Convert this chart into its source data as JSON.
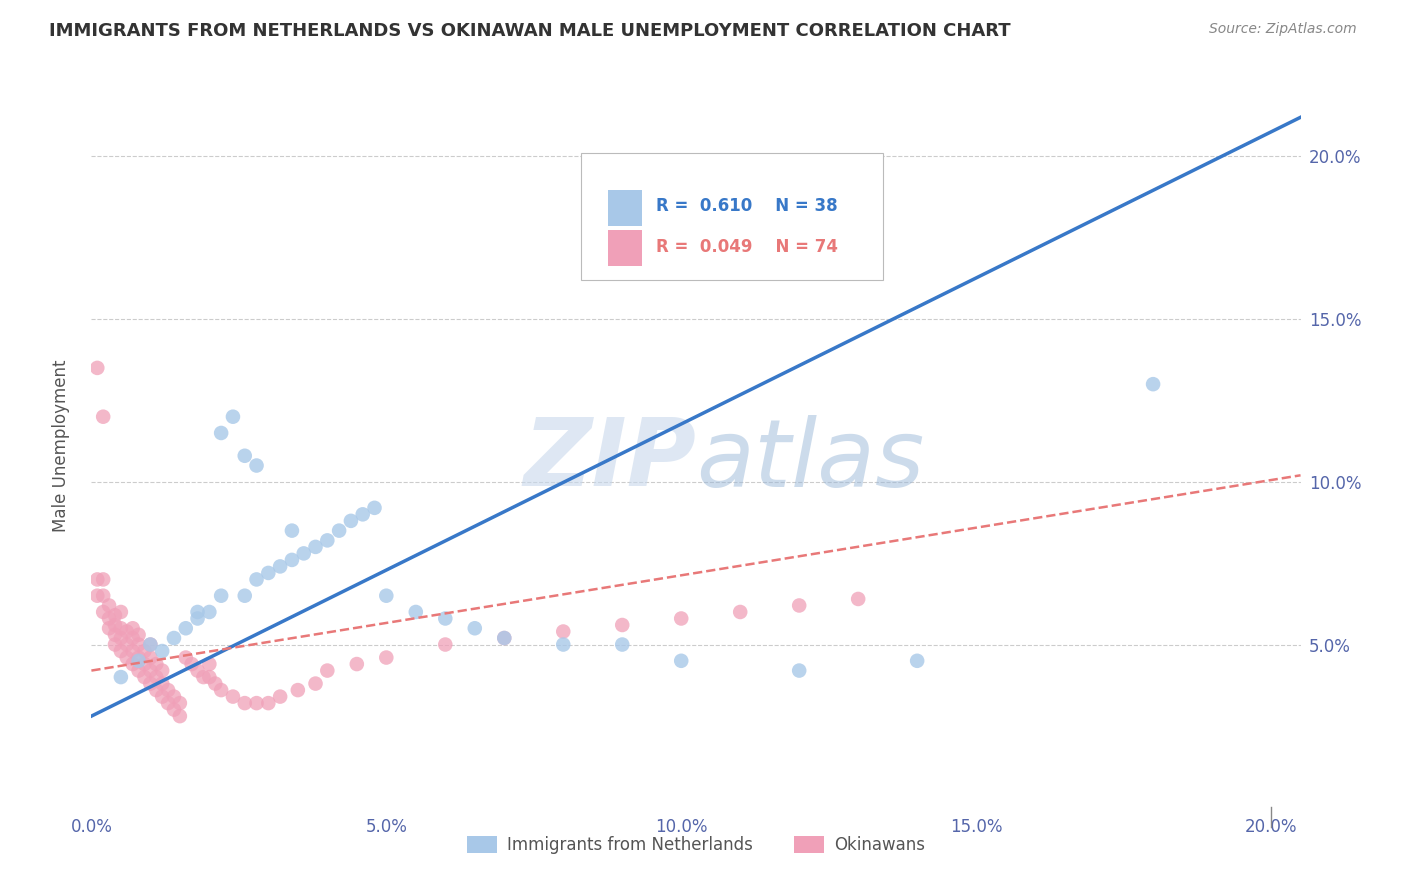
{
  "title": "IMMIGRANTS FROM NETHERLANDS VS OKINAWAN MALE UNEMPLOYMENT CORRELATION CHART",
  "source": "Source: ZipAtlas.com",
  "ylabel": "Male Unemployment",
  "legend_r1": "R =  0.610",
  "legend_n1": "N = 38",
  "legend_r2": "R =  0.049",
  "legend_n2": "N = 74",
  "legend_label1": "Immigrants from Netherlands",
  "legend_label2": "Okinawans",
  "color_blue": "#a8c8e8",
  "color_pink": "#f0a0b8",
  "color_line_blue": "#3878c8",
  "color_line_pink": "#e87878",
  "watermark_top": "ZIP",
  "watermark_bot": "atlas",
  "blue_scatter_x": [
    0.005,
    0.008,
    0.01,
    0.012,
    0.014,
    0.016,
    0.018,
    0.018,
    0.02,
    0.022,
    0.022,
    0.024,
    0.026,
    0.026,
    0.028,
    0.028,
    0.03,
    0.032,
    0.034,
    0.034,
    0.036,
    0.038,
    0.04,
    0.042,
    0.044,
    0.046,
    0.048,
    0.05,
    0.055,
    0.06,
    0.065,
    0.07,
    0.08,
    0.09,
    0.1,
    0.12,
    0.14,
    0.18
  ],
  "blue_scatter_y": [
    0.04,
    0.045,
    0.05,
    0.048,
    0.052,
    0.055,
    0.06,
    0.058,
    0.06,
    0.065,
    0.115,
    0.12,
    0.065,
    0.108,
    0.07,
    0.105,
    0.072,
    0.074,
    0.076,
    0.085,
    0.078,
    0.08,
    0.082,
    0.085,
    0.088,
    0.09,
    0.092,
    0.065,
    0.06,
    0.058,
    0.055,
    0.052,
    0.05,
    0.05,
    0.045,
    0.042,
    0.045,
    0.13
  ],
  "pink_scatter_x": [
    0.001,
    0.001,
    0.002,
    0.002,
    0.002,
    0.003,
    0.003,
    0.003,
    0.004,
    0.004,
    0.004,
    0.004,
    0.005,
    0.005,
    0.005,
    0.005,
    0.006,
    0.006,
    0.006,
    0.007,
    0.007,
    0.007,
    0.007,
    0.008,
    0.008,
    0.008,
    0.008,
    0.009,
    0.009,
    0.009,
    0.01,
    0.01,
    0.01,
    0.01,
    0.011,
    0.011,
    0.011,
    0.012,
    0.012,
    0.012,
    0.013,
    0.013,
    0.014,
    0.014,
    0.015,
    0.015,
    0.016,
    0.017,
    0.018,
    0.019,
    0.02,
    0.02,
    0.021,
    0.022,
    0.024,
    0.026,
    0.028,
    0.03,
    0.032,
    0.035,
    0.038,
    0.04,
    0.045,
    0.05,
    0.06,
    0.07,
    0.08,
    0.09,
    0.1,
    0.11,
    0.12,
    0.13,
    0.001,
    0.002
  ],
  "pink_scatter_y": [
    0.065,
    0.07,
    0.06,
    0.065,
    0.07,
    0.055,
    0.058,
    0.062,
    0.05,
    0.053,
    0.056,
    0.059,
    0.048,
    0.052,
    0.055,
    0.06,
    0.046,
    0.05,
    0.054,
    0.044,
    0.048,
    0.052,
    0.055,
    0.042,
    0.046,
    0.05,
    0.053,
    0.04,
    0.044,
    0.048,
    0.038,
    0.042,
    0.046,
    0.05,
    0.036,
    0.04,
    0.044,
    0.034,
    0.038,
    0.042,
    0.032,
    0.036,
    0.03,
    0.034,
    0.028,
    0.032,
    0.046,
    0.044,
    0.042,
    0.04,
    0.04,
    0.044,
    0.038,
    0.036,
    0.034,
    0.032,
    0.032,
    0.032,
    0.034,
    0.036,
    0.038,
    0.042,
    0.044,
    0.046,
    0.05,
    0.052,
    0.054,
    0.056,
    0.058,
    0.06,
    0.062,
    0.064,
    0.135,
    0.12
  ],
  "xlim": [
    0.0,
    0.205
  ],
  "ylim": [
    0.0,
    0.222
  ],
  "ytick_labels": [
    "5.0%",
    "10.0%",
    "15.0%",
    "20.0%"
  ],
  "ytick_values": [
    0.05,
    0.1,
    0.15,
    0.2
  ],
  "xtick_labels": [
    "0.0%",
    "5.0%",
    "10.0%",
    "15.0%",
    "20.0%"
  ],
  "xtick_values": [
    0.0,
    0.05,
    0.1,
    0.15,
    0.2
  ],
  "blue_line_x": [
    0.0,
    0.205
  ],
  "blue_line_y": [
    0.028,
    0.212
  ],
  "pink_line_x": [
    0.0,
    0.205
  ],
  "pink_line_y": [
    0.042,
    0.102
  ],
  "title_color": "#333333",
  "grid_color": "#cccccc",
  "tick_color": "#5566aa",
  "legend_text_blue": "#3878c8",
  "legend_text_pink": "#e87878"
}
